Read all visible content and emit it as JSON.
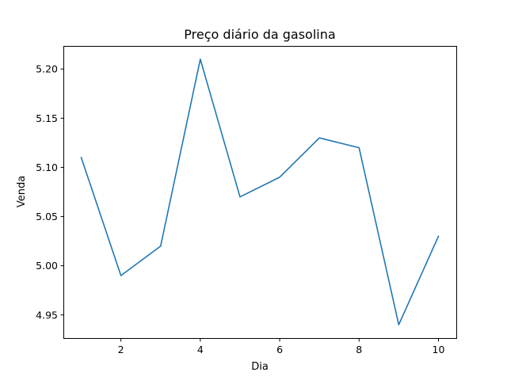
{
  "chart_data": {
    "type": "line",
    "title": "Preço diário da gasolina",
    "xlabel": "Dia",
    "ylabel": "Venda",
    "x": [
      1,
      2,
      3,
      4,
      5,
      6,
      7,
      8,
      9,
      10
    ],
    "series": [
      {
        "values": [
          5.11,
          4.99,
          5.02,
          5.21,
          5.07,
          5.09,
          5.13,
          5.12,
          4.94,
          5.03
        ],
        "color": "#1f77b4"
      }
    ],
    "xlim": [
      0.55,
      10.45
    ],
    "ylim": [
      4.9265,
      5.2235
    ],
    "xticks": [
      2,
      4,
      6,
      8,
      10
    ],
    "yticks": [
      4.95,
      5.0,
      5.05,
      5.1,
      5.15,
      5.2
    ],
    "xtick_labels": [
      "2",
      "4",
      "6",
      "8",
      "10"
    ],
    "ytick_labels": [
      "4.95",
      "5.00",
      "5.05",
      "5.10",
      "5.15",
      "5.20"
    ],
    "grid": false,
    "legend": false
  }
}
